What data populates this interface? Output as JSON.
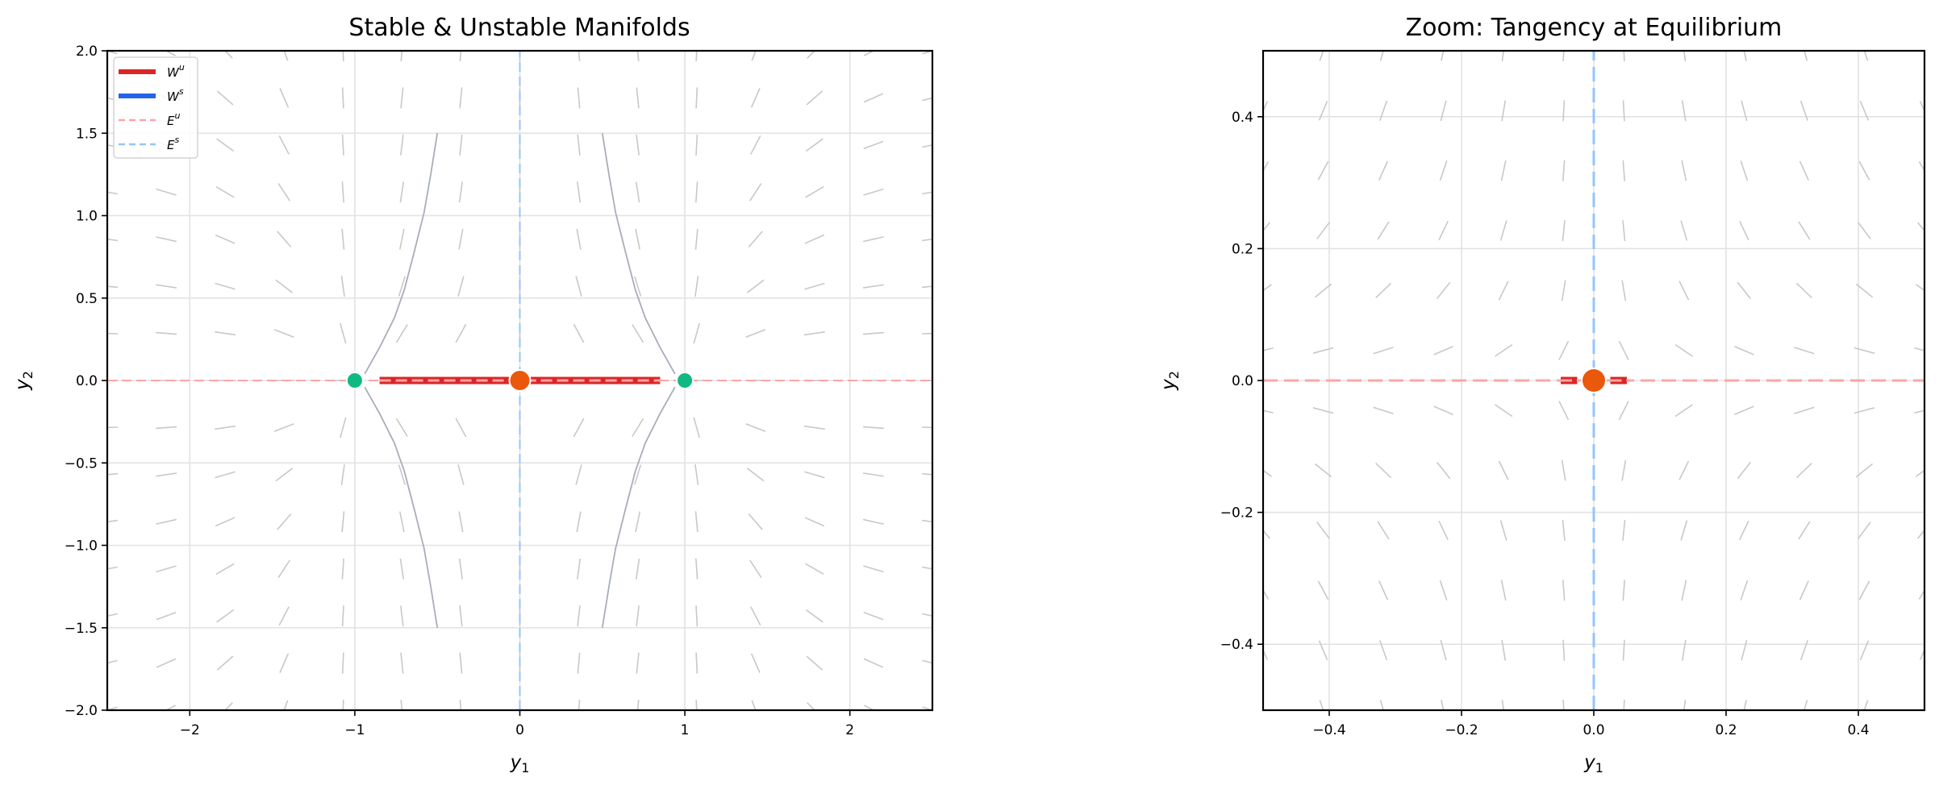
{
  "chart_data": [
    {
      "type": "line",
      "title": "Stable & Unstable Manifolds",
      "xlabel": "y1",
      "ylabel": "y2",
      "xlim": [
        -2.5,
        2.5
      ],
      "ylim": [
        -2.0,
        2.0
      ],
      "xticks": [
        -2,
        -1,
        0,
        1,
        2
      ],
      "xtick_labels": [
        "−2",
        "−1",
        "0",
        "1",
        "2"
      ],
      "yticks": [
        -2.0,
        -1.5,
        -1.0,
        -0.5,
        0.0,
        0.5,
        1.0,
        1.5,
        2.0
      ],
      "ytick_labels": [
        "−2.0",
        "−1.5",
        "−1.0",
        "−0.5",
        "0.0",
        "0.5",
        "1.0",
        "1.5",
        "2.0"
      ],
      "grid": true,
      "legend": {
        "position": "upper left",
        "entries": [
          {
            "label": "W",
            "sup": "u",
            "color": "#dc2626",
            "style": "solid"
          },
          {
            "label": "W",
            "sup": "s",
            "color": "#2563eb",
            "style": "solid"
          },
          {
            "label": "E",
            "sup": "u",
            "color": "#fca5a5",
            "style": "dashed"
          },
          {
            "label": "E",
            "sup": "s",
            "color": "#93c5fd",
            "style": "dashed"
          }
        ]
      },
      "direction_field": {
        "equation": "y1' = y1 - y1^3, y2' = -2*y2",
        "nx": 15,
        "ny": 15,
        "x_range": [
          -2.5,
          2.5
        ],
        "y_range": [
          -2.0,
          2.0
        ],
        "color": "#c8c8c8"
      },
      "series": [
        {
          "name": "E^u",
          "color": "#fca5a5",
          "style": "dashed",
          "x": [
            -2.5,
            2.5
          ],
          "y": [
            0,
            0
          ]
        },
        {
          "name": "E^s",
          "color": "#93c5fd",
          "style": "dashed",
          "x": [
            0,
            0
          ],
          "y": [
            -2.0,
            2.0
          ]
        },
        {
          "name": "W^u (left branch)",
          "color": "#dc2626",
          "style": "solid",
          "x": [
            -0.85,
            -0.03
          ],
          "y": [
            0,
            0
          ]
        },
        {
          "name": "W^u (right branch)",
          "color": "#dc2626",
          "style": "solid",
          "x": [
            0.03,
            0.85
          ],
          "y": [
            0,
            0
          ]
        },
        {
          "name": "trajectory",
          "color": "#a8adb8",
          "style": "solid",
          "x": [
            -0.94,
            -0.85,
            -0.76,
            -0.7,
            -0.64,
            -0.58,
            -0.54,
            -0.5
          ],
          "y": [
            0.04,
            0.2,
            0.38,
            0.55,
            0.78,
            1.02,
            1.25,
            1.5
          ]
        },
        {
          "name": "trajectory",
          "color": "#a8adb8",
          "style": "solid",
          "x": [
            0.94,
            0.85,
            0.76,
            0.7,
            0.64,
            0.58,
            0.54,
            0.5
          ],
          "y": [
            0.04,
            0.2,
            0.38,
            0.55,
            0.78,
            1.02,
            1.25,
            1.5
          ]
        },
        {
          "name": "trajectory",
          "color": "#a8adb8",
          "style": "solid",
          "x": [
            -0.94,
            -0.85,
            -0.76,
            -0.7,
            -0.64,
            -0.58,
            -0.54,
            -0.5
          ],
          "y": [
            -0.04,
            -0.2,
            -0.38,
            -0.55,
            -0.78,
            -1.02,
            -1.25,
            -1.5
          ]
        },
        {
          "name": "trajectory",
          "color": "#a8adb8",
          "style": "solid",
          "x": [
            0.94,
            0.85,
            0.76,
            0.7,
            0.64,
            0.58,
            0.54,
            0.5
          ],
          "y": [
            -0.04,
            -0.2,
            -0.38,
            -0.55,
            -0.78,
            -1.02,
            -1.25,
            -1.5
          ]
        }
      ],
      "points": [
        {
          "name": "saddle equilibrium",
          "x": 0,
          "y": 0,
          "color": "#ea580c",
          "r": 12
        },
        {
          "name": "stable equilibrium",
          "x": -1,
          "y": 0,
          "color": "#10b981",
          "r": 9
        },
        {
          "name": "stable equilibrium",
          "x": 1,
          "y": 0,
          "color": "#10b981",
          "r": 9
        }
      ]
    },
    {
      "type": "line",
      "title": "Zoom: Tangency at Equilibrium",
      "xlabel": "y1",
      "ylabel": "y2",
      "xlim": [
        -0.5,
        0.5
      ],
      "ylim": [
        -0.5,
        0.5
      ],
      "xticks": [
        -0.4,
        -0.2,
        0.0,
        0.2,
        0.4
      ],
      "xtick_labels": [
        "−0.4",
        "−0.2",
        "0.0",
        "0.2",
        "0.4"
      ],
      "yticks": [
        -0.4,
        -0.2,
        0.0,
        0.2,
        0.4
      ],
      "ytick_labels": [
        "−0.4",
        "−0.2",
        "0.0",
        "0.2",
        "0.4"
      ],
      "grid": true,
      "direction_field": {
        "equation": "y1' = y1 - y1^3, y2' = -2*y2",
        "nx": 12,
        "ny": 12,
        "x_range": [
          -0.5,
          0.5
        ],
        "y_range": [
          -0.5,
          0.5
        ],
        "color": "#c8c8c8"
      },
      "series": [
        {
          "name": "E^u",
          "color": "#fca5a5",
          "style": "dashed",
          "x": [
            -0.5,
            0.5
          ],
          "y": [
            0,
            0
          ]
        },
        {
          "name": "E^s",
          "color": "#93c5fd",
          "style": "dashed",
          "x": [
            0,
            0
          ],
          "y": [
            -0.5,
            0.5
          ]
        },
        {
          "name": "W^u (left branch)",
          "color": "#dc2626",
          "style": "solid",
          "x": [
            -0.05,
            -0.025
          ],
          "y": [
            0,
            0
          ]
        },
        {
          "name": "W^u (right branch)",
          "color": "#dc2626",
          "style": "solid",
          "x": [
            0.025,
            0.05
          ],
          "y": [
            0,
            0
          ]
        }
      ],
      "points": [
        {
          "name": "saddle equilibrium",
          "x": 0,
          "y": 0,
          "color": "#ea580c",
          "r": 14
        }
      ]
    }
  ],
  "figure": {
    "left_panel": {
      "title": "Stable & Unstable Manifolds"
    },
    "right_panel": {
      "title": "Zoom: Tangency at Equilibrium"
    }
  }
}
